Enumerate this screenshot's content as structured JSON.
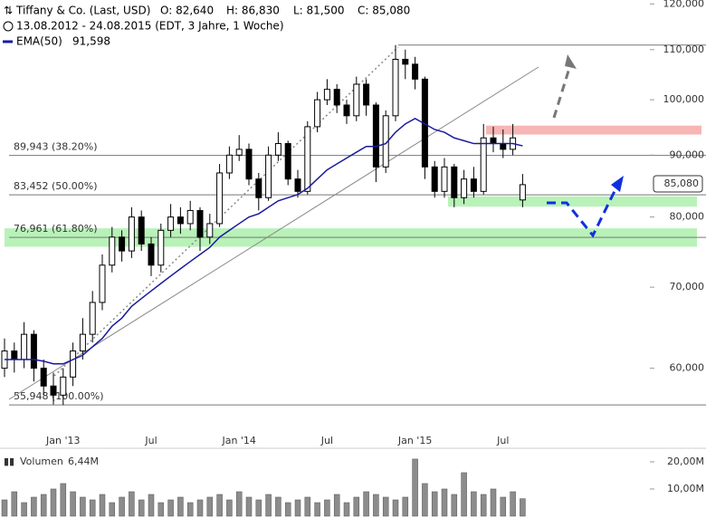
{
  "header": {
    "title": "Tiffany & Co. (Last, USD)",
    "ohlc": [
      "O: 82,640",
      "H: 86,830",
      "L: 81,500",
      "C: 85,080"
    ],
    "period": "13.08.2012 - 24.08.2015 (EDT, 3 Jahre, 1 Woche)"
  },
  "chart_data": [
    {
      "type": "candlestick",
      "log_scale": true,
      "color": "#000000",
      "up_color": "#ffffff",
      "categories": [
        null,
        null,
        null,
        null,
        null,
        null,
        "Jan '13",
        null,
        null,
        null,
        null,
        null,
        null,
        null,
        null,
        "Jul",
        null,
        null,
        null,
        null,
        null,
        null,
        null,
        null,
        "Jan '14",
        null,
        null,
        null,
        null,
        null,
        null,
        null,
        null,
        "Jul",
        null,
        null,
        null,
        null,
        null,
        null,
        null,
        null,
        "Jan '15",
        null,
        null,
        null,
        null,
        null,
        null,
        null,
        null,
        "Jul",
        null,
        null
      ],
      "open": [
        60000,
        62000,
        61000,
        64000,
        60000,
        58000,
        57000,
        59000,
        62000,
        64000,
        68000,
        73000,
        77000,
        75000,
        80000,
        76000,
        73000,
        78000,
        80000,
        79000,
        81000,
        77000,
        79000,
        87000,
        90000,
        91000,
        86000,
        83000,
        90000,
        92000,
        86000,
        84000,
        95000,
        100000,
        102000,
        99000,
        97000,
        103000,
        99000,
        88000,
        97000,
        108000,
        107000,
        104000,
        88000,
        84000,
        88000,
        83000,
        86000,
        84000,
        93000,
        92000,
        91000,
        82640
      ],
      "high": [
        63500,
        63000,
        65500,
        64500,
        61000,
        59500,
        60000,
        63000,
        66000,
        69500,
        74500,
        78500,
        78000,
        81500,
        81000,
        77000,
        79000,
        82000,
        81500,
        82500,
        81500,
        80500,
        88500,
        91500,
        93500,
        92000,
        87000,
        91500,
        94000,
        92500,
        87500,
        96000,
        101500,
        104000,
        103000,
        100000,
        104500,
        104000,
        99500,
        98000,
        110956,
        110000,
        108500,
        104500,
        89000,
        89500,
        88500,
        87500,
        88000,
        95500,
        95000,
        94500,
        95500,
        86830
      ],
      "low": [
        59000,
        59500,
        60000,
        58500,
        57000,
        56000,
        55948,
        58000,
        61000,
        63000,
        67000,
        72000,
        73500,
        74000,
        75000,
        71500,
        72000,
        77000,
        77500,
        78000,
        75000,
        76000,
        78500,
        86000,
        89000,
        85000,
        81000,
        82500,
        89000,
        85000,
        83000,
        83500,
        94000,
        99000,
        97500,
        95500,
        96000,
        97000,
        85500,
        87000,
        96000,
        104000,
        102000,
        86000,
        83000,
        83000,
        81500,
        82000,
        83000,
        83500,
        90500,
        89500,
        90000,
        81500
      ],
      "close": [
        62000,
        61000,
        64000,
        60000,
        58000,
        57000,
        59000,
        62000,
        64000,
        68000,
        73000,
        77000,
        75000,
        80000,
        76000,
        73000,
        78000,
        80000,
        79000,
        81000,
        77000,
        79000,
        87000,
        90000,
        91000,
        86000,
        83000,
        90000,
        92000,
        86000,
        84000,
        95000,
        100000,
        102000,
        99000,
        97000,
        103000,
        99000,
        88000,
        97000,
        108000,
        107000,
        104000,
        88000,
        84000,
        88000,
        83000,
        86000,
        84000,
        93000,
        92000,
        91000,
        93000,
        85080
      ],
      "ema": {
        "name": "EMA(50)",
        "value_label": "91,598",
        "color": "#1a1a9c",
        "values": [
          61000,
          61000,
          61000,
          61000,
          60800,
          60500,
          60500,
          61000,
          61500,
          62500,
          63500,
          65000,
          66000,
          67500,
          68500,
          69500,
          70500,
          71500,
          72500,
          73500,
          74500,
          75500,
          77000,
          78000,
          79000,
          80000,
          80500,
          81500,
          82500,
          83000,
          83500,
          84500,
          86000,
          87500,
          88500,
          89500,
          90500,
          91500,
          91500,
          92000,
          94000,
          95500,
          96500,
          95500,
          94500,
          94000,
          93000,
          92500,
          92000,
          92000,
          92000,
          92000,
          92000,
          91598
        ]
      },
      "fib_levels": [
        {
          "value": 89943,
          "label": "89,943 (38.20%)"
        },
        {
          "value": 83452,
          "label": "83,452 (50.00%)"
        },
        {
          "value": 76961,
          "label": "76,961 (61.80%)"
        },
        {
          "value": 55948,
          "label": "55,948 (100.00%)"
        }
      ],
      "range_high": 110956,
      "zones": [
        {
          "from": 75600,
          "to": 78300,
          "color": "#b8f2b8"
        },
        {
          "from": 81600,
          "to": 83200,
          "color": "#b8f2b8"
        },
        {
          "from": 93600,
          "to": 95200,
          "color": "#f7b5b5"
        }
      ],
      "last_price_label": "85,080",
      "ylim": [
        51700,
        120900
      ],
      "yticks": [
        {
          "value": 60000,
          "label": "60,000"
        },
        {
          "value": 70000,
          "label": "70,000"
        },
        {
          "value": 80000,
          "label": "80,000"
        },
        {
          "value": 90000,
          "label": "90,000"
        },
        {
          "value": 100000,
          "label": "100,000"
        },
        {
          "value": 110000,
          "label": "110,000"
        },
        {
          "value": 120000,
          "label": "120,000"
        }
      ]
    },
    {
      "type": "bar",
      "title": "Volumen",
      "value_label": "6,44M",
      "color": "#8c8c8c",
      "values": [
        6000000,
        9000000,
        5000000,
        7000000,
        8000000,
        10000000,
        12000000,
        9000000,
        7000000,
        6000000,
        8000000,
        5000000,
        7000000,
        9000000,
        6000000,
        8000000,
        5000000,
        6000000,
        7000000,
        5000000,
        6000000,
        7000000,
        8000000,
        6000000,
        9000000,
        7000000,
        6000000,
        8000000,
        7000000,
        5000000,
        6000000,
        7000000,
        5000000,
        6000000,
        8000000,
        5000000,
        7000000,
        9000000,
        8000000,
        7000000,
        6000000,
        7000000,
        21000000,
        12000000,
        9000000,
        10000000,
        8000000,
        16000000,
        9000000,
        8000000,
        10000000,
        7000000,
        9000000,
        6440000
      ],
      "ylim": [
        0,
        23300000
      ],
      "yticks": [
        {
          "value": 10000000,
          "label": "10,00M"
        },
        {
          "value": 20000000,
          "label": "20,00M"
        }
      ]
    }
  ]
}
